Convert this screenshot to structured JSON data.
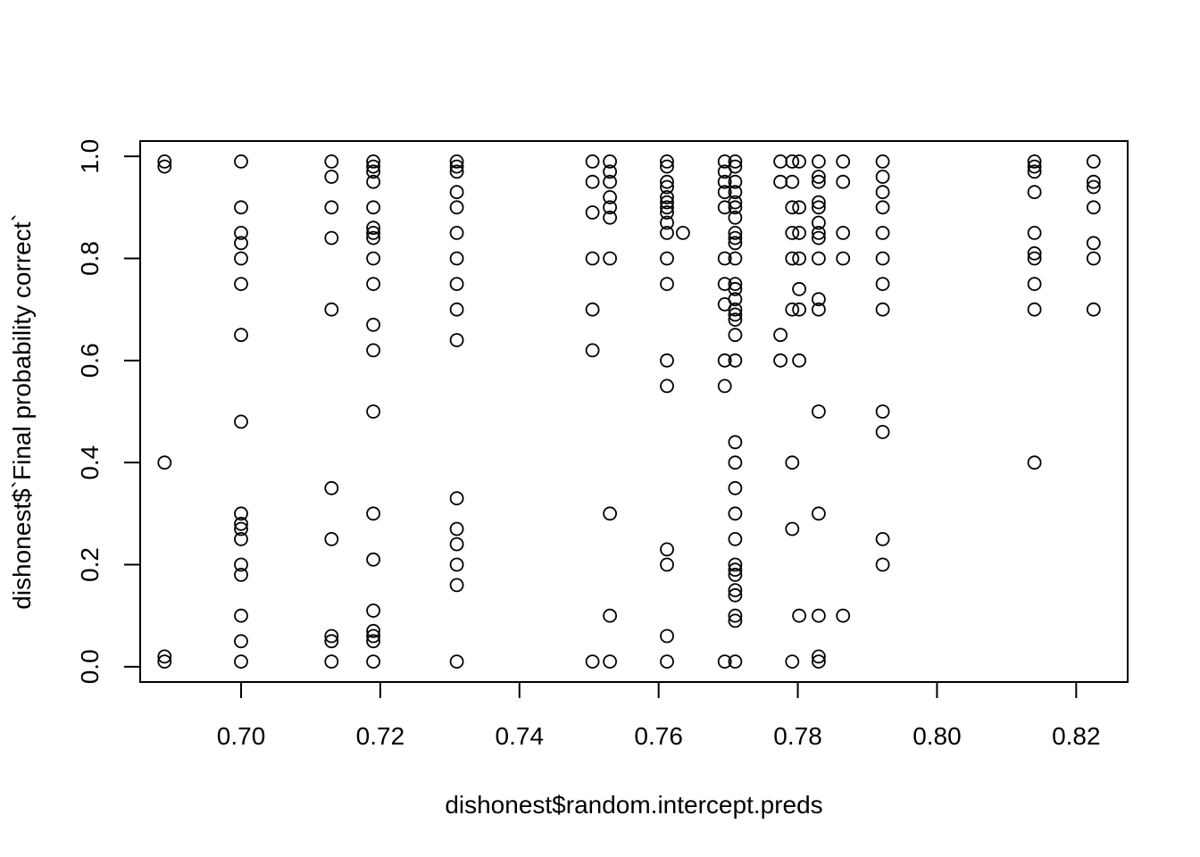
{
  "chart_data": {
    "type": "scatter",
    "title": "",
    "xlabel": "dishonest$random.intercept.preds",
    "ylabel": "dishonest$`Final probability correct`",
    "xlim": [
      0.6855,
      0.8274
    ],
    "ylim": [
      -0.03,
      1.03
    ],
    "x_ticks": [
      0.7,
      0.72,
      0.74,
      0.76,
      0.78,
      0.8,
      0.82
    ],
    "x_tick_labels": [
      "0.70",
      "0.72",
      "0.74",
      "0.76",
      "0.78",
      "0.80",
      "0.82"
    ],
    "y_ticks": [
      0.0,
      0.2,
      0.4,
      0.6,
      0.8,
      1.0
    ],
    "y_tick_labels": [
      "0.0",
      "0.2",
      "0.4",
      "0.6",
      "0.8",
      "1.0"
    ],
    "marker": "open-circle",
    "color": "#000000",
    "grid": false,
    "legend": "none",
    "columns": [
      {
        "x": 0.689,
        "y": [
          0.99,
          0.98,
          0.4,
          0.02,
          0.01
        ]
      },
      {
        "x": 0.7,
        "y": [
          0.99,
          0.9,
          0.85,
          0.83,
          0.8,
          0.75,
          0.65,
          0.48,
          0.3,
          0.28,
          0.27,
          0.25,
          0.2,
          0.18,
          0.1,
          0.05,
          0.01
        ]
      },
      {
        "x": 0.713,
        "y": [
          0.99,
          0.96,
          0.9,
          0.84,
          0.7,
          0.35,
          0.25,
          0.06,
          0.05,
          0.01
        ]
      },
      {
        "x": 0.719,
        "y": [
          0.99,
          0.98,
          0.97,
          0.95,
          0.9,
          0.86,
          0.85,
          0.84,
          0.8,
          0.75,
          0.67,
          0.62,
          0.5,
          0.3,
          0.21,
          0.11,
          0.07,
          0.06,
          0.05,
          0.01
        ]
      },
      {
        "x": 0.731,
        "y": [
          0.99,
          0.98,
          0.97,
          0.93,
          0.9,
          0.85,
          0.8,
          0.75,
          0.7,
          0.64,
          0.33,
          0.27,
          0.24,
          0.2,
          0.16,
          0.01
        ]
      },
      {
        "x": 0.7505,
        "y": [
          0.99,
          0.95,
          0.89,
          0.8,
          0.7,
          0.62,
          0.01
        ]
      },
      {
        "x": 0.753,
        "y": [
          0.99,
          0.97,
          0.95,
          0.92,
          0.9,
          0.88,
          0.8,
          0.3,
          0.1,
          0.01
        ]
      },
      {
        "x": 0.7612,
        "y": [
          0.99,
          0.98,
          0.95,
          0.94,
          0.92,
          0.91,
          0.9,
          0.89,
          0.87,
          0.85,
          0.8,
          0.75,
          0.6,
          0.55,
          0.23,
          0.2,
          0.06,
          0.01
        ]
      },
      {
        "x": 0.7635,
        "y": [
          0.85
        ]
      },
      {
        "x": 0.7695,
        "y": [
          0.99,
          0.97,
          0.95,
          0.93,
          0.9,
          0.8,
          0.75,
          0.71,
          0.6,
          0.55,
          0.01
        ]
      },
      {
        "x": 0.771,
        "y": [
          0.99,
          0.98,
          0.95,
          0.93,
          0.91,
          0.9,
          0.88,
          0.85,
          0.84,
          0.83,
          0.8,
          0.75,
          0.74,
          0.72,
          0.7,
          0.69,
          0.68,
          0.65,
          0.6,
          0.44,
          0.4,
          0.35,
          0.3,
          0.25,
          0.2,
          0.19,
          0.18,
          0.15,
          0.14,
          0.1,
          0.09,
          0.01
        ]
      },
      {
        "x": 0.7775,
        "y": [
          0.99,
          0.95,
          0.65,
          0.6
        ]
      },
      {
        "x": 0.7792,
        "y": [
          0.99,
          0.95,
          0.9,
          0.85,
          0.8,
          0.7,
          0.4,
          0.27,
          0.01
        ]
      },
      {
        "x": 0.7802,
        "y": [
          0.99,
          0.9,
          0.85,
          0.8,
          0.74,
          0.7,
          0.6,
          0.1
        ]
      },
      {
        "x": 0.783,
        "y": [
          0.99,
          0.96,
          0.95,
          0.91,
          0.9,
          0.87,
          0.85,
          0.84,
          0.8,
          0.72,
          0.7,
          0.5,
          0.3,
          0.1,
          0.02,
          0.01
        ]
      },
      {
        "x": 0.7865,
        "y": [
          0.99,
          0.95,
          0.85,
          0.8,
          0.1
        ]
      },
      {
        "x": 0.7922,
        "y": [
          0.99,
          0.96,
          0.93,
          0.9,
          0.85,
          0.8,
          0.75,
          0.7,
          0.5,
          0.46,
          0.25,
          0.2
        ]
      },
      {
        "x": 0.814,
        "y": [
          0.99,
          0.98,
          0.97,
          0.93,
          0.85,
          0.81,
          0.8,
          0.75,
          0.7,
          0.4
        ]
      },
      {
        "x": 0.8225,
        "y": [
          0.99,
          0.95,
          0.94,
          0.9,
          0.83,
          0.8,
          0.7
        ]
      }
    ]
  }
}
